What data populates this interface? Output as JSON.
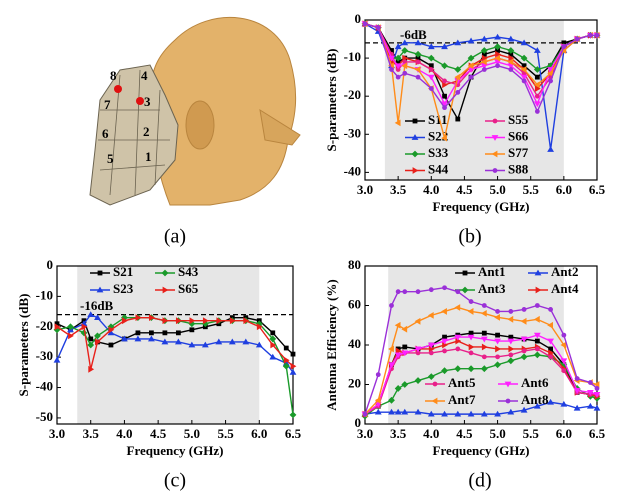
{
  "figure_a": {
    "caption": "(a)",
    "labels": [
      "1",
      "2",
      "3",
      "4",
      "5",
      "6",
      "7",
      "8"
    ]
  },
  "chart_data": [
    {
      "type": "line",
      "caption": "(b)",
      "x_label": "Frequency (GHz)",
      "y_label": "S-parameters (dB)",
      "x": [
        3.0,
        3.2,
        3.4,
        3.5,
        3.6,
        3.8,
        4.0,
        4.2,
        4.4,
        4.6,
        4.8,
        5.0,
        5.2,
        5.4,
        5.6,
        5.8,
        6.0,
        6.2,
        6.4,
        6.5
      ],
      "xlim": [
        3.0,
        6.5
      ],
      "ylim": [
        -42,
        0
      ],
      "xticks": [
        {
          "value": 3,
          "label": "3.0"
        },
        {
          "value": 3.5,
          "label": "3.5"
        },
        {
          "value": 4,
          "label": "4.0"
        },
        {
          "value": 4.5,
          "label": "4.5"
        },
        {
          "value": 5,
          "label": "5.0"
        },
        {
          "value": 5.5,
          "label": "5.5"
        },
        {
          "value": 6,
          "label": "6.0"
        },
        {
          "value": 6.5,
          "label": "6.5"
        }
      ],
      "yticks": [
        0,
        -10,
        -20,
        -30,
        -40
      ],
      "shade_x": [
        3.3,
        6.0
      ],
      "shade_color": "#e6e6e6",
      "threshold": -6,
      "threshold_label": "-6dB",
      "series": [
        {
          "name": "S11",
          "color": "#000000",
          "marker": "square",
          "values": [
            -1,
            -2,
            -8,
            -11,
            -10,
            -10,
            -12,
            -20,
            -26,
            -15,
            -9,
            -8,
            -9,
            -12,
            -15,
            -12,
            -6,
            -5,
            -4,
            -4
          ]
        },
        {
          "name": "S22",
          "color": "#1f3fe0",
          "marker": "triangle",
          "values": [
            -1,
            -3,
            -12,
            -7,
            -6,
            -6,
            -7,
            -7,
            -6,
            -5.5,
            -5,
            -4.5,
            -5,
            -6,
            -8,
            -34,
            -8,
            -5,
            -4,
            -4
          ]
        },
        {
          "name": "S33",
          "color": "#1a9a2a",
          "marker": "diamond",
          "values": [
            -1,
            -2,
            -10,
            -10,
            -8,
            -9,
            -10,
            -12,
            -13,
            -10,
            -8,
            -7,
            -8,
            -10,
            -13,
            -12,
            -7,
            -5,
            -4,
            -4
          ]
        },
        {
          "name": "S44",
          "color": "#e8201a",
          "marker": "triangle-right",
          "values": [
            -1,
            -2,
            -11,
            -12,
            -10,
            -11,
            -13,
            -17,
            -16,
            -12,
            -10,
            -9,
            -10,
            -13,
            -18,
            -14,
            -7,
            -5,
            -4,
            -4
          ]
        },
        {
          "name": "S55",
          "color": "#e8208a",
          "marker": "circle",
          "values": [
            -1,
            -2,
            -9,
            -13,
            -11,
            -11,
            -13,
            -16,
            -17,
            -13,
            -11,
            -10,
            -11,
            -14,
            -20,
            -15,
            -7,
            -5,
            -4,
            -4
          ]
        },
        {
          "name": "S66",
          "color": "#ff20ff",
          "marker": "triangle-down",
          "values": [
            -1,
            -2,
            -10,
            -12,
            -12,
            -13,
            -15,
            -22,
            -16,
            -13,
            -12,
            -11,
            -12,
            -15,
            -22,
            -13,
            -7,
            -5,
            -4,
            -4
          ]
        },
        {
          "name": "S77",
          "color": "#ff8c1a",
          "marker": "triangle-left",
          "values": [
            -1,
            -2,
            -12,
            -27,
            -12,
            -13,
            -18,
            -31,
            -15,
            -12,
            -11,
            -10,
            -11,
            -13,
            -17,
            -14,
            -8,
            -5,
            -4,
            -4
          ]
        },
        {
          "name": "S88",
          "color": "#9a30d8",
          "marker": "circle",
          "values": [
            -1,
            -2,
            -13,
            -15,
            -14,
            -15,
            -18,
            -23,
            -19,
            -15,
            -13,
            -12,
            -13,
            -16,
            -24,
            -16,
            -7,
            -5,
            -4,
            -4
          ]
        }
      ]
    },
    {
      "type": "line",
      "caption": "(c)",
      "x_label": "Frequency (GHz)",
      "y_label": "S-parameters (dB)",
      "x": [
        3.0,
        3.2,
        3.4,
        3.5,
        3.6,
        3.8,
        4.0,
        4.2,
        4.4,
        4.6,
        4.8,
        5.0,
        5.2,
        5.4,
        5.6,
        5.8,
        6.0,
        6.2,
        6.4,
        6.5
      ],
      "xlim": [
        3.0,
        6.5
      ],
      "ylim": [
        -52,
        0
      ],
      "xticks": [
        {
          "value": 3,
          "label": "3.0"
        },
        {
          "value": 3.5,
          "label": "3.5"
        },
        {
          "value": 4,
          "label": "4.0"
        },
        {
          "value": 4.5,
          "label": "4.5"
        },
        {
          "value": 5,
          "label": "5.0"
        },
        {
          "value": 5.5,
          "label": "5.5"
        },
        {
          "value": 6,
          "label": "6.0"
        },
        {
          "value": 6.5,
          "label": "6.5"
        }
      ],
      "yticks": [
        0,
        -10,
        -20,
        -30,
        -40,
        -50
      ],
      "shade_x": [
        3.3,
        6.0
      ],
      "shade_color": "#e6e6e6",
      "threshold": -16,
      "threshold_label": "-16dB",
      "series": [
        {
          "name": "S21",
          "color": "#000000",
          "marker": "square",
          "values": [
            -19,
            -21,
            -18,
            -24,
            -25,
            -26,
            -24,
            -22,
            -22,
            -22,
            -22,
            -21,
            -20,
            -19,
            -17,
            -17,
            -18,
            -22,
            -27,
            -29
          ]
        },
        {
          "name": "S23",
          "color": "#1f3fe0",
          "marker": "triangle",
          "values": [
            -31,
            -21,
            -19,
            -16,
            -17,
            -22,
            -24,
            -24,
            -24,
            -25,
            -25,
            -26,
            -26,
            -25,
            -25,
            -25,
            -26,
            -30,
            -32,
            -35
          ]
        },
        {
          "name": "S43",
          "color": "#1a9a2a",
          "marker": "diamond",
          "values": [
            -21,
            -20,
            -22,
            -26,
            -23,
            -20,
            -17,
            -17,
            -17,
            -18,
            -18,
            -19,
            -19,
            -18,
            -18,
            -18,
            -19,
            -24,
            -33,
            -49
          ]
        },
        {
          "name": "S65",
          "color": "#e8201a",
          "marker": "triangle-right",
          "values": [
            -20,
            -23,
            -20,
            -34,
            -25,
            -21,
            -18,
            -17,
            -17,
            -18,
            -18,
            -18,
            -18,
            -18,
            -18,
            -18,
            -20,
            -26,
            -31,
            -33
          ]
        }
      ]
    },
    {
      "type": "line",
      "caption": "(d)",
      "x_label": "Frequency (GHz)",
      "y_label": "Antenna Efficiency (%)",
      "x": [
        3.0,
        3.2,
        3.4,
        3.5,
        3.6,
        3.8,
        4.0,
        4.2,
        4.4,
        4.6,
        4.8,
        5.0,
        5.2,
        5.4,
        5.6,
        5.8,
        6.0,
        6.2,
        6.4,
        6.5
      ],
      "xlim": [
        3.0,
        6.5
      ],
      "ylim": [
        0,
        80
      ],
      "xticks": [
        {
          "value": 3,
          "label": "3.0"
        },
        {
          "value": 3.5,
          "label": "3.5"
        },
        {
          "value": 4,
          "label": "4.0"
        },
        {
          "value": 4.5,
          "label": "4.5"
        },
        {
          "value": 5,
          "label": "5.0"
        },
        {
          "value": 5.5,
          "label": "5.5"
        },
        {
          "value": 6,
          "label": "6.0"
        },
        {
          "value": 6.5,
          "label": "6.5"
        }
      ],
      "yticks": [
        0,
        20,
        40,
        60,
        80
      ],
      "shade_x": [
        3.35,
        6.0
      ],
      "shade_color": "#e6e6e6",
      "series": [
        {
          "name": "Ant1",
          "color": "#000000",
          "marker": "square",
          "values": [
            5,
            9,
            30,
            38,
            39,
            38,
            40,
            44,
            45,
            46,
            46,
            45,
            44,
            43,
            42,
            38,
            30,
            16,
            15,
            14
          ]
        },
        {
          "name": "Ant2",
          "color": "#1f3fe0",
          "marker": "triangle",
          "values": [
            5,
            6,
            6,
            6,
            6,
            6,
            5,
            5,
            5,
            5,
            5,
            5,
            6,
            7,
            9,
            11,
            10,
            8,
            9,
            8
          ]
        },
        {
          "name": "Ant3",
          "color": "#1a9a2a",
          "marker": "diamond",
          "values": [
            4,
            9,
            12,
            18,
            20,
            22,
            24,
            27,
            28,
            28,
            28,
            30,
            32,
            34,
            35,
            34,
            30,
            18,
            14,
            13
          ]
        },
        {
          "name": "Ant4",
          "color": "#e8201a",
          "marker": "triangle-right",
          "values": [
            5,
            10,
            30,
            37,
            36,
            38,
            38,
            40,
            42,
            39,
            39,
            38,
            38,
            38,
            39,
            36,
            28,
            16,
            15,
            14
          ]
        },
        {
          "name": "Ant5",
          "color": "#e8208a",
          "marker": "circle",
          "values": [
            5,
            9,
            28,
            34,
            36,
            36,
            36,
            37,
            38,
            36,
            34,
            34,
            35,
            37,
            38,
            34,
            27,
            16,
            15,
            15
          ]
        },
        {
          "name": "Ant6",
          "color": "#ff20ff",
          "marker": "triangle-down",
          "values": [
            5,
            10,
            30,
            35,
            36,
            38,
            40,
            42,
            44,
            44,
            43,
            42,
            42,
            43,
            45,
            42,
            32,
            17,
            16,
            15
          ]
        },
        {
          "name": "Ant7",
          "color": "#ff8c1a",
          "marker": "triangle-left",
          "values": [
            5,
            12,
            38,
            50,
            48,
            52,
            55,
            57,
            59,
            57,
            56,
            54,
            53,
            52,
            53,
            50,
            40,
            22,
            21,
            20
          ]
        },
        {
          "name": "Ant8",
          "color": "#9a30d8",
          "marker": "circle",
          "values": [
            5,
            25,
            60,
            67,
            67,
            67,
            68,
            69,
            67,
            62,
            60,
            57,
            57,
            58,
            60,
            58,
            45,
            23,
            21,
            18
          ]
        }
      ]
    }
  ]
}
